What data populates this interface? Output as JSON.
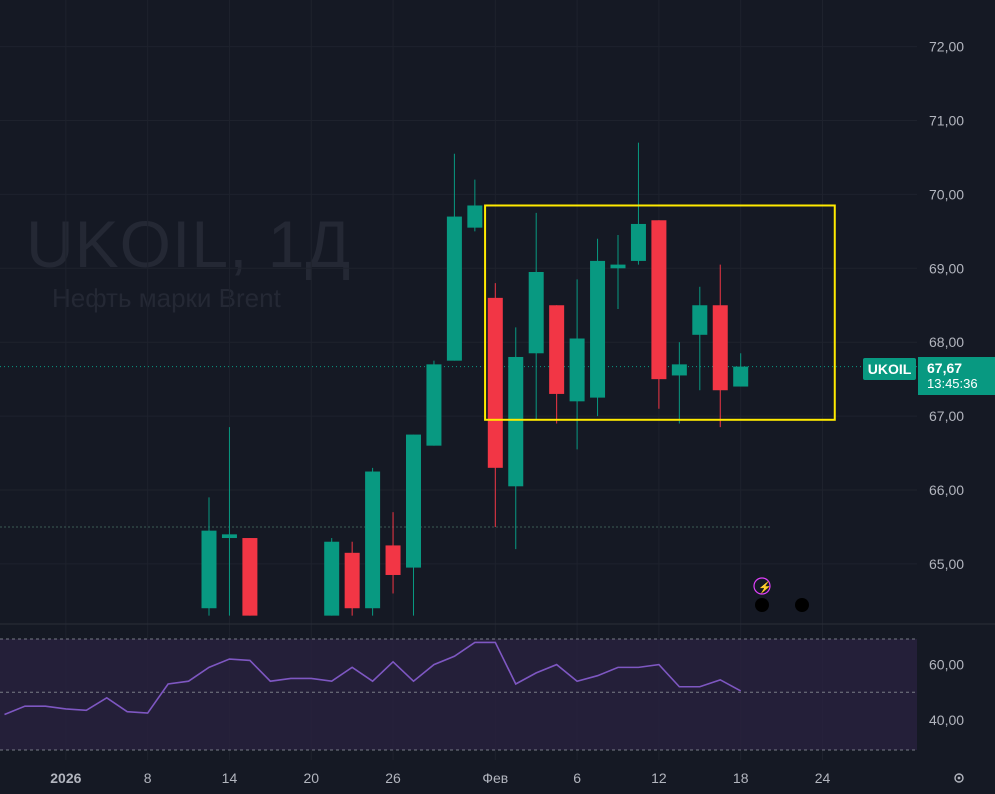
{
  "watermark": {
    "symbol": "UKOIL, 1Д",
    "name": "Нефть марки Brent"
  },
  "badges": {
    "symbol": "UKOIL",
    "last_price": "67,67",
    "countdown": "13:45:36"
  },
  "colors": {
    "background": "#151924",
    "up": "#089981",
    "down": "#f23645",
    "rsi_line": "#7e57c2",
    "rsi_band": "#2a2140",
    "highlight_box": "#ffea00"
  },
  "icons": [
    "lightning-icon",
    "event-dot-icon",
    "gear-icon"
  ],
  "chart_data": [
    {
      "type": "candlestick",
      "price_ticks": [
        {
          "v": 72.0,
          "label": "72,00"
        },
        {
          "v": 71.0,
          "label": "71,00"
        },
        {
          "v": 70.0,
          "label": "70,00"
        },
        {
          "v": 69.0,
          "label": "69,00"
        },
        {
          "v": 68.0,
          "label": "68,00"
        },
        {
          "v": 67.0,
          "label": "67,00"
        },
        {
          "v": 66.0,
          "label": "66,00"
        },
        {
          "v": 65.0,
          "label": "65,00"
        }
      ],
      "date_ticks": [
        {
          "slot": 3,
          "label": "2026",
          "bold": true
        },
        {
          "slot": 7,
          "label": "8"
        },
        {
          "slot": 11,
          "label": "14"
        },
        {
          "slot": 15,
          "label": "20"
        },
        {
          "slot": 19,
          "label": "26"
        },
        {
          "slot": 24,
          "label": "Фев"
        },
        {
          "slot": 28,
          "label": "6"
        },
        {
          "slot": 32,
          "label": "12"
        },
        {
          "slot": 36,
          "label": "18"
        },
        {
          "slot": 40,
          "label": "24"
        }
      ],
      "ylim": [
        64.3,
        72.5
      ],
      "last_price": 67.67,
      "reference_level": 65.5,
      "candles": [
        {
          "slot": 10,
          "o": 64.4,
          "h": 65.9,
          "l": 64.3,
          "c": 65.45
        },
        {
          "slot": 11,
          "o": 65.35,
          "h": 66.85,
          "l": 64.3,
          "c": 65.4
        },
        {
          "slot": 12,
          "o": 65.35,
          "h": 65.35,
          "l": 64.3,
          "c": 64.3
        },
        {
          "slot": 16,
          "o": 64.3,
          "h": 65.35,
          "l": 64.3,
          "c": 65.3
        },
        {
          "slot": 17,
          "o": 65.15,
          "h": 65.3,
          "l": 64.3,
          "c": 64.4
        },
        {
          "slot": 18,
          "o": 64.4,
          "h": 66.3,
          "l": 64.3,
          "c": 66.25
        },
        {
          "slot": 19,
          "o": 65.25,
          "h": 65.7,
          "l": 64.6,
          "c": 64.85
        },
        {
          "slot": 20,
          "o": 64.95,
          "h": 66.75,
          "l": 64.3,
          "c": 66.75
        },
        {
          "slot": 21,
          "o": 66.6,
          "h": 67.75,
          "l": 66.6,
          "c": 67.7
        },
        {
          "slot": 22,
          "o": 67.75,
          "h": 70.55,
          "l": 67.75,
          "c": 69.7
        },
        {
          "slot": 23,
          "o": 69.55,
          "h": 70.2,
          "l": 69.5,
          "c": 69.85
        },
        {
          "slot": 24,
          "o": 68.6,
          "h": 68.8,
          "l": 65.5,
          "c": 66.3
        },
        {
          "slot": 25,
          "o": 66.05,
          "h": 68.2,
          "l": 65.2,
          "c": 67.8
        },
        {
          "slot": 26,
          "o": 67.85,
          "h": 69.75,
          "l": 66.95,
          "c": 68.95
        },
        {
          "slot": 27,
          "o": 68.5,
          "h": 68.5,
          "l": 66.9,
          "c": 67.3
        },
        {
          "slot": 28,
          "o": 67.2,
          "h": 68.85,
          "l": 66.55,
          "c": 68.05
        },
        {
          "slot": 29,
          "o": 67.25,
          "h": 69.4,
          "l": 67.0,
          "c": 69.1
        },
        {
          "slot": 30,
          "o": 69.0,
          "h": 69.45,
          "l": 68.45,
          "c": 69.05
        },
        {
          "slot": 31,
          "o": 69.1,
          "h": 70.7,
          "l": 69.05,
          "c": 69.6
        },
        {
          "slot": 32,
          "o": 69.65,
          "h": 69.65,
          "l": 67.1,
          "c": 67.5
        },
        {
          "slot": 33,
          "o": 67.55,
          "h": 68.0,
          "l": 66.9,
          "c": 67.7
        },
        {
          "slot": 34,
          "o": 68.1,
          "h": 68.75,
          "l": 67.35,
          "c": 68.5
        },
        {
          "slot": 35,
          "o": 68.5,
          "h": 69.05,
          "l": 66.85,
          "c": 67.35
        },
        {
          "slot": 36,
          "o": 67.4,
          "h": 67.85,
          "l": 67.4,
          "c": 67.67
        }
      ],
      "highlight_box": {
        "slot_from": 23.5,
        "slot_to": 40.6,
        "price_from": 66.95,
        "price_to": 69.85
      }
    },
    {
      "type": "line",
      "indicator": "RSI",
      "ylim": [
        34,
        66
      ],
      "y_ticks": [
        {
          "v": 60,
          "label": "60,00"
        },
        {
          "v": 40,
          "label": "40,00"
        }
      ],
      "bands": [
        30,
        50,
        70
      ],
      "x": [
        0,
        1,
        2,
        3,
        4,
        5,
        6,
        7,
        8,
        9,
        10,
        11,
        12,
        13,
        14,
        15,
        16,
        17,
        18,
        19,
        20,
        21,
        22,
        23,
        24,
        25,
        26,
        27,
        28,
        29,
        30,
        31,
        32,
        33,
        34,
        35,
        36
      ],
      "values": [
        42,
        45,
        45,
        44,
        43.5,
        48,
        43,
        42.5,
        53,
        54,
        59,
        62,
        61.5,
        54,
        55,
        55,
        54,
        59,
        54,
        61,
        54,
        60,
        63,
        68,
        68,
        53,
        57,
        60,
        54,
        56,
        59,
        59,
        60,
        52,
        52,
        54.5,
        50.5
      ]
    }
  ]
}
